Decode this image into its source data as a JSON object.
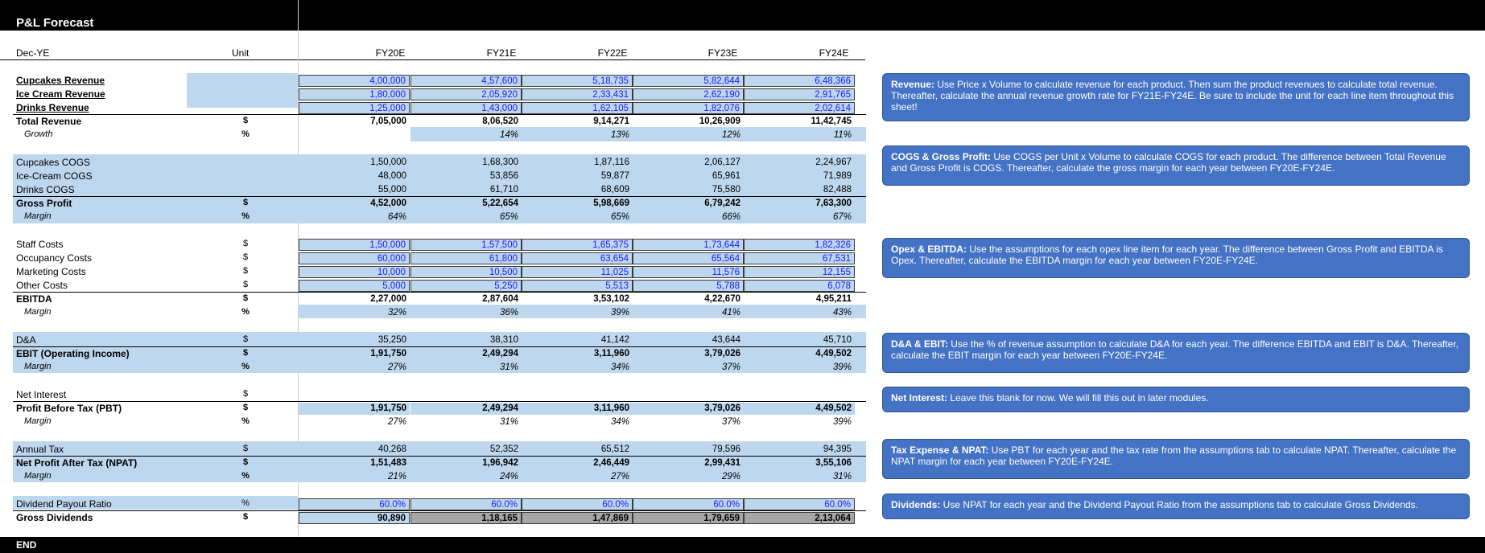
{
  "title": "P&L Forecast",
  "end_label": "END",
  "header": {
    "col_label": "Dec-YE",
    "unit_label": "Unit",
    "years": [
      "FY20E",
      "FY21E",
      "FY22E",
      "FY23E",
      "FY24E"
    ]
  },
  "rows": {
    "cupcakes_rev": {
      "label": "Cupcakes Revenue",
      "unit": "",
      "values": [
        "4,00,000",
        "4,57,600",
        "5,18,735",
        "5,82,644",
        "6,48,366"
      ]
    },
    "icecream_rev": {
      "label": "Ice Cream Revenue",
      "unit": "",
      "values": [
        "1,80,000",
        "2,05,920",
        "2,33,431",
        "2,62,190",
        "2,91,765"
      ]
    },
    "drinks_rev": {
      "label": "Drinks Revenue",
      "unit": "",
      "values": [
        "1,25,000",
        "1,43,000",
        "1,62,105",
        "1,82,076",
        "2,02,614"
      ]
    },
    "total_rev": {
      "label": "Total Revenue",
      "unit": "$",
      "values": [
        "7,05,000",
        "8,06,520",
        "9,14,271",
        "10,26,909",
        "11,42,745"
      ]
    },
    "growth": {
      "label": "Growth",
      "unit": "%",
      "values": [
        "",
        "14%",
        "13%",
        "12%",
        "11%"
      ]
    },
    "cupcakes_cogs": {
      "label": "Cupcakes COGS",
      "unit": "",
      "values": [
        "1,50,000",
        "1,68,300",
        "1,87,116",
        "2,06,127",
        "2,24,967"
      ]
    },
    "icecream_cogs": {
      "label": "Ice-Cream COGS",
      "unit": "",
      "values": [
        "48,000",
        "53,856",
        "59,877",
        "65,961",
        "71,989"
      ]
    },
    "drinks_cogs": {
      "label": "Drinks COGS",
      "unit": "",
      "values": [
        "55,000",
        "61,710",
        "68,609",
        "75,580",
        "82,488"
      ]
    },
    "gross_profit": {
      "label": "Gross Profit",
      "unit": "$",
      "values": [
        "4,52,000",
        "5,22,654",
        "5,98,669",
        "6,79,242",
        "7,63,300"
      ]
    },
    "gp_margin": {
      "label": "Margin",
      "unit": "%",
      "values": [
        "64%",
        "65%",
        "65%",
        "66%",
        "67%"
      ]
    },
    "staff": {
      "label": "Staff Costs",
      "unit": "$",
      "values": [
        "1,50,000",
        "1,57,500",
        "1,65,375",
        "1,73,644",
        "1,82,326"
      ]
    },
    "occupancy": {
      "label": "Occupancy Costs",
      "unit": "$",
      "values": [
        "60,000",
        "61,800",
        "63,654",
        "65,564",
        "67,531"
      ]
    },
    "marketing": {
      "label": "Marketing Costs",
      "unit": "$",
      "values": [
        "10,000",
        "10,500",
        "11,025",
        "11,576",
        "12,155"
      ]
    },
    "other": {
      "label": "Other Costs",
      "unit": "$",
      "values": [
        "5,000",
        "5,250",
        "5,513",
        "5,788",
        "6,078"
      ]
    },
    "ebitda": {
      "label": "EBITDA",
      "unit": "$",
      "values": [
        "2,27,000",
        "2,87,604",
        "3,53,102",
        "4,22,670",
        "4,95,211"
      ]
    },
    "ebitda_margin": {
      "label": "Margin",
      "unit": "%",
      "values": [
        "32%",
        "36%",
        "39%",
        "41%",
        "43%"
      ]
    },
    "da": {
      "label": "D&A",
      "unit": "$",
      "values": [
        "35,250",
        "38,310",
        "41,142",
        "43,644",
        "45,710"
      ]
    },
    "ebit": {
      "label": "EBIT (Operating Income)",
      "unit": "$",
      "values": [
        "1,91,750",
        "2,49,294",
        "3,11,960",
        "3,79,026",
        "4,49,502"
      ]
    },
    "ebit_margin": {
      "label": "Margin",
      "unit": "%",
      "values": [
        "27%",
        "31%",
        "34%",
        "37%",
        "39%"
      ]
    },
    "net_interest": {
      "label": "Net Interest",
      "unit": "$",
      "values": [
        "",
        "",
        "",
        "",
        ""
      ]
    },
    "pbt": {
      "label": "Profit Before Tax (PBT)",
      "unit": "$",
      "values": [
        "1,91,750",
        "2,49,294",
        "3,11,960",
        "3,79,026",
        "4,49,502"
      ]
    },
    "pbt_margin": {
      "label": "Margin",
      "unit": "%",
      "values": [
        "27%",
        "31%",
        "34%",
        "37%",
        "39%"
      ]
    },
    "tax": {
      "label": "Annual Tax",
      "unit": "$",
      "values": [
        "40,268",
        "52,352",
        "65,512",
        "79,596",
        "94,395"
      ]
    },
    "npat": {
      "label": "Net Profit After Tax (NPAT)",
      "unit": "$",
      "values": [
        "1,51,483",
        "1,96,942",
        "2,46,449",
        "2,99,431",
        "3,55,106"
      ]
    },
    "npat_margin": {
      "label": "Margin",
      "unit": "%",
      "values": [
        "21%",
        "24%",
        "27%",
        "29%",
        "31%"
      ]
    },
    "payout": {
      "label": "Dividend Payout Ratio",
      "unit": "%",
      "values": [
        "60.0%",
        "60.0%",
        "60.0%",
        "60.0%",
        "60.0%"
      ]
    },
    "dividends": {
      "label": "Gross Dividends",
      "unit": "$",
      "values": [
        "90,890",
        "1,18,165",
        "1,47,869",
        "1,79,659",
        "2,13,064"
      ]
    }
  },
  "notes": {
    "revenue": {
      "head": "Revenue:",
      "text": " Use Price x Volume to calculate revenue for each product. Then sum the product revenues to calculate total revenue. Thereafter, calculate the annual revenue growth rate for FY21E-FY24E. Be sure to include the unit for each line item throughout this sheet!"
    },
    "cogs": {
      "head": "COGS & Gross Profit:",
      "text": " Use COGS per Unit x Volume to calculate COGS for each product. The difference between Total Revenue and Gross Profit is COGS. Thereafter, calculate the gross margin for each year between FY20E-FY24E."
    },
    "opex": {
      "head": "Opex & EBITDA:",
      "text": " Use the assumptions for each opex line item for each year. The difference between Gross Profit and EBITDA is Opex. Thereafter, calculate the EBITDA margin for each year between FY20E-FY24E."
    },
    "da": {
      "head": "D&A & EBIT:",
      "text": " Use the % of revenue assumption to calculate D&A for each year. The difference EBITDA and EBIT is D&A. Thereafter, calculate the EBIT margin for each year between FY20E-FY24E."
    },
    "interest": {
      "head": "Net Interest:",
      "text": " Leave this blank for now. We will fill this out in later modules."
    },
    "tax": {
      "head": "Tax Expense & NPAT:",
      "text": " Use PBT for each year and the tax rate from the assumptions tab to calculate NPAT. Thereafter, calculate the NPAT margin for each year between FY20E-FY24E."
    },
    "dividends": {
      "head": "Dividends:",
      "text": " Use NPAT for each year and the Dividend Payout Ratio from the assumptions tab to calculate Gross Dividends."
    }
  }
}
